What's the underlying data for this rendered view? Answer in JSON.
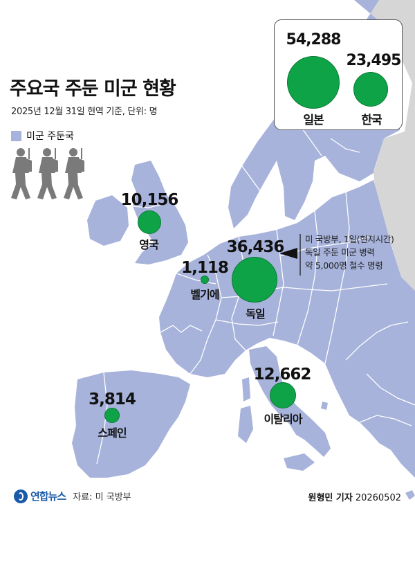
{
  "title": "주요국 주둔 미군 현황",
  "subtitle": "2025년 12월 31일 현역 기준, 단위: 명",
  "legend": {
    "label": "미군 주둔국",
    "color": "#a7b3db"
  },
  "colors": {
    "land": "#a7b3db",
    "non_host_land": "#d6d6d6",
    "sea": "#ffffff",
    "bubble": "#0fa348",
    "borders": "#ffffff"
  },
  "icons": {
    "soldiers": "three-marching-soldiers-icon",
    "logo": "yonhap-logo-icon"
  },
  "inset": [
    {
      "country": "일본",
      "value": "54,288",
      "count": 54288
    },
    {
      "country": "한국",
      "value": "23,495",
      "count": 23495
    }
  ],
  "map_points": [
    {
      "country": "영국",
      "value": "10,156",
      "count": 10156
    },
    {
      "country": "벨기에",
      "value": "1,118",
      "count": 1118
    },
    {
      "country": "독일",
      "value": "36,436",
      "count": 36436
    },
    {
      "country": "이탈리아",
      "value": "12,662",
      "count": 12662
    },
    {
      "country": "스페인",
      "value": "3,814",
      "count": 3814
    }
  ],
  "annotation": [
    "미 국방부, 1일(현지시간)",
    "독일 주둔 미군 병력",
    "약 5,000명 철수 명령"
  ],
  "footer": {
    "logo": "연합뉴스",
    "source": "자료: 미 국방부",
    "reporter": "원형민 기자",
    "date": "20260502"
  }
}
